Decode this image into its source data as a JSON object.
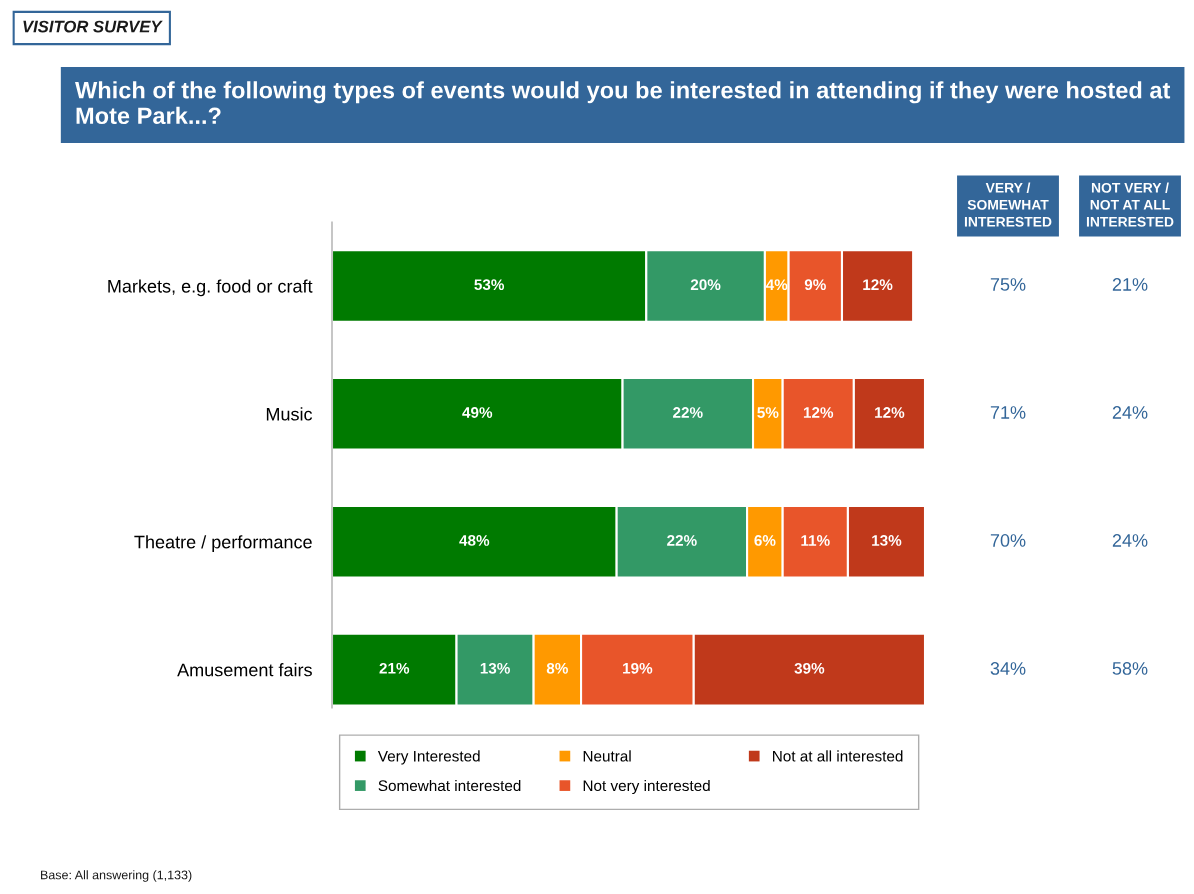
{
  "chart_data": {
    "type": "bar",
    "orientation": "horizontal",
    "stacked": true,
    "title": "Which of the following types of events would you be interested in attending if they were hosted at Mote Park...?",
    "categories": [
      "Markets, e.g. food or craft",
      "Music",
      "Theatre / performance",
      "Amusement fairs"
    ],
    "xlim": [
      0,
      100
    ],
    "tick_labels": "y",
    "grid": false,
    "legend": "bottom",
    "series": [
      {
        "name": "Very Interested",
        "color": "#007a00",
        "values": [
          53,
          49,
          48,
          21
        ],
        "value_labels": [
          "53%",
          "49%",
          "48%",
          "21%"
        ]
      },
      {
        "name": "Somewhat interested",
        "color": "#339966",
        "values": [
          20,
          22,
          22,
          13
        ],
        "value_labels": [
          "20%",
          "22%",
          "22%",
          "13%"
        ]
      },
      {
        "name": "Neutral",
        "color": "#ff9900",
        "values": [
          4,
          5,
          6,
          8
        ],
        "value_labels": [
          "4%",
          "5%",
          "6%",
          "8%"
        ]
      },
      {
        "name": "Not very interested",
        "color": "#e8552a",
        "values": [
          9,
          12,
          11,
          19
        ],
        "value_labels": [
          "9%",
          "12%",
          "11%",
          "19%"
        ]
      },
      {
        "name": "Not at all interested",
        "color": "#c0391b",
        "values": [
          12,
          12,
          13,
          39
        ],
        "value_labels": [
          "12%",
          "12%",
          "13%",
          "39%"
        ]
      }
    ],
    "annotations": [
      "VISITOR SURVEY",
      "VERY /\nSOMEWHAT\nINTERESTED",
      "NOT VERY /\nNOT AT ALL\nINTERESTED",
      "75%",
      "21%",
      "71%",
      "24%",
      "70%",
      "24%",
      "34%",
      "58%",
      "Base: All answering (1,133)"
    ]
  }
}
